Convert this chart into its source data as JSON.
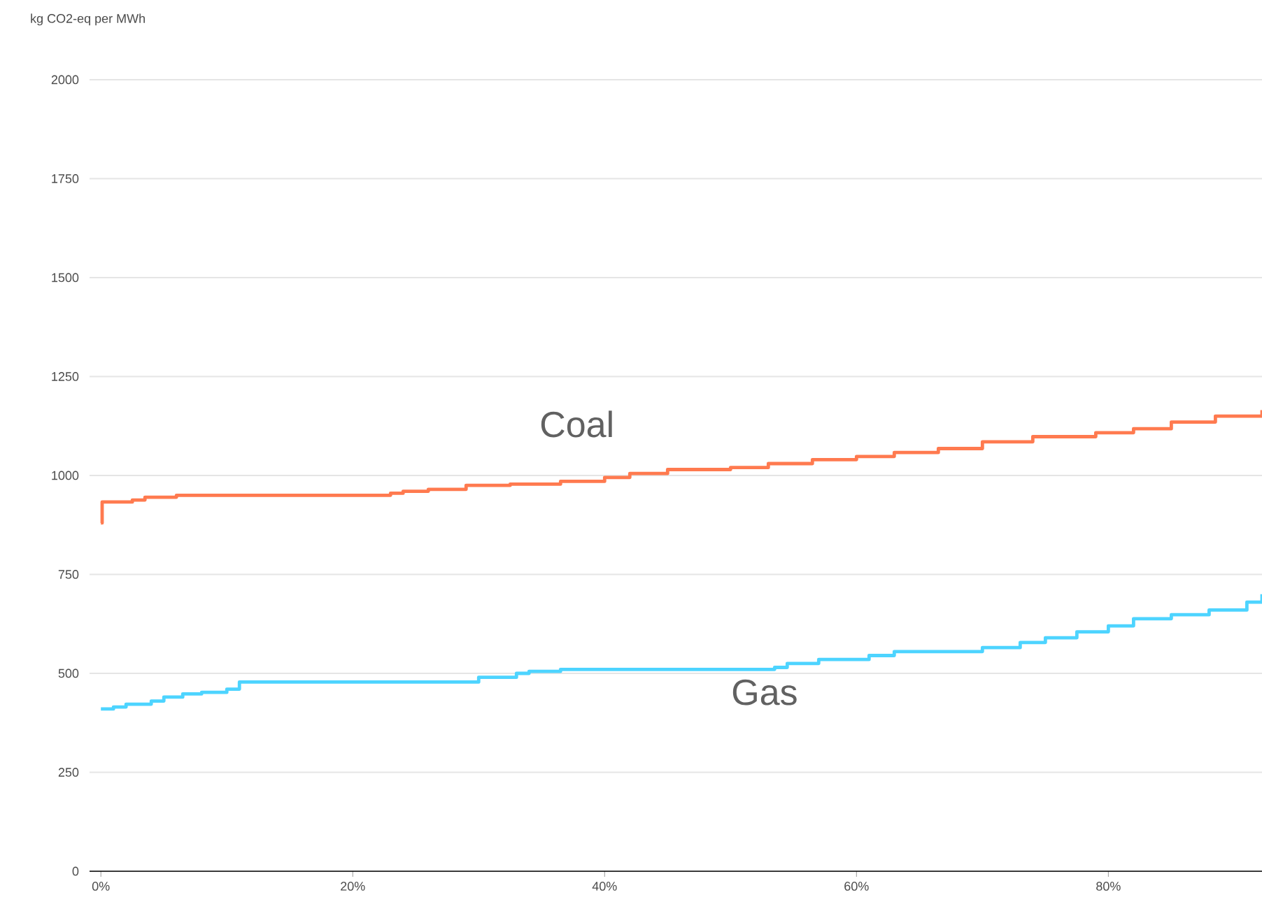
{
  "chart_data": {
    "type": "step",
    "ylabel": "kg CO2-eq per MWh",
    "xlim": [
      -0.9,
      92.2
    ],
    "ylim": [
      0,
      2000
    ],
    "xticks": [
      {
        "value": 0,
        "label": "0%"
      },
      {
        "value": 20,
        "label": "20%"
      },
      {
        "value": 40,
        "label": "40%"
      },
      {
        "value": 60,
        "label": "60%"
      },
      {
        "value": 80,
        "label": "80%"
      }
    ],
    "yticks": [
      0,
      250,
      500,
      750,
      1000,
      1250,
      1500,
      1750,
      2000
    ],
    "grid": "y",
    "legend": false,
    "marker": "none",
    "line_style": "solid",
    "series": [
      {
        "name": "Coal",
        "color": "#ff7a4f",
        "x": [
          0,
          0.1,
          2.5,
          3.5,
          6,
          23,
          24,
          26,
          29,
          32.5,
          36.5,
          40,
          42,
          45,
          50,
          53,
          56.5,
          60,
          63,
          66.5,
          70,
          74,
          79,
          82,
          85,
          88.5,
          92.2
        ],
        "values": [
          880,
          933,
          938,
          945,
          950,
          955,
          960,
          965,
          975,
          978,
          985,
          995,
          1005,
          1015,
          1020,
          1030,
          1040,
          1048,
          1058,
          1068,
          1085,
          1098,
          1108,
          1118,
          1135,
          1150,
          1165
        ]
      },
      {
        "name": "Gas",
        "color": "#4dd4ff",
        "x": [
          0,
          1,
          2,
          4,
          5,
          6.5,
          8,
          10,
          11,
          30,
          33,
          34,
          36.5,
          53.5,
          54.5,
          57,
          61,
          63,
          70,
          73,
          75,
          77.5,
          80,
          82,
          85,
          88,
          91,
          92.2
        ],
        "values": [
          410,
          415,
          422,
          430,
          440,
          448,
          452,
          460,
          478,
          490,
          500,
          505,
          510,
          515,
          525,
          535,
          545,
          555,
          565,
          578,
          590,
          605,
          620,
          638,
          648,
          660,
          680,
          700
        ]
      }
    ]
  }
}
